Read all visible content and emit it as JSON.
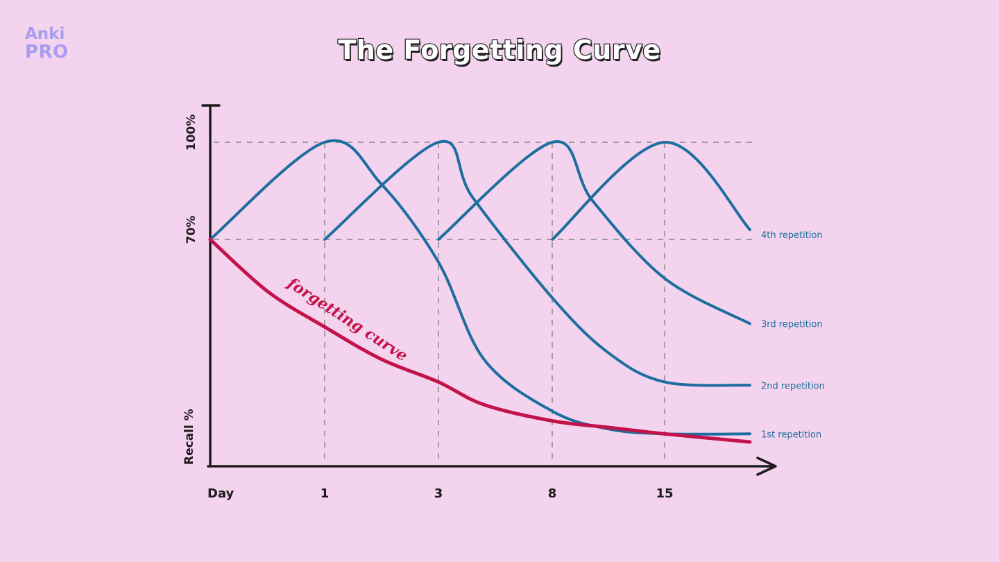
{
  "brand": {
    "line1": "Anki",
    "line2": "PRO",
    "color": "#a89cf0"
  },
  "background_color": "#f4d3ee",
  "chart_data": {
    "type": "line",
    "title": "The Forgetting Curve",
    "xlabel": "Day",
    "ylabel": "Recall %",
    "x_ticks": [
      "1",
      "3",
      "8",
      "15"
    ],
    "y_ticks": [
      "70%",
      "100%"
    ],
    "y_tick_values": [
      70,
      100
    ],
    "grid": "dashed at ticks",
    "colors": {
      "repetition": "#1d6e9f",
      "forgetting": "#c2134a"
    },
    "forgetting_curve": {
      "label": "forgetting curve",
      "points": [
        [
          0,
          70
        ],
        [
          0.5,
          54
        ],
        [
          1,
          43
        ],
        [
          2,
          33
        ],
        [
          3,
          26
        ],
        [
          5,
          19
        ],
        [
          8,
          14
        ],
        [
          11.5,
          12
        ],
        [
          15,
          10
        ],
        [
          18,
          7.5
        ]
      ]
    },
    "series": [
      {
        "name": "1st repetition",
        "points": [
          [
            0,
            70
          ],
          [
            1,
            100
          ],
          [
            2,
            87
          ],
          [
            3,
            63
          ],
          [
            5,
            33
          ],
          [
            8,
            17
          ],
          [
            11.5,
            11.5
          ],
          [
            15,
            10
          ],
          [
            18,
            10
          ]
        ]
      },
      {
        "name": "2nd repetition",
        "points": [
          [
            1,
            70
          ],
          [
            3,
            100
          ],
          [
            4.5,
            83
          ],
          [
            8,
            52
          ],
          [
            11.5,
            35
          ],
          [
            15,
            26
          ],
          [
            18,
            25
          ]
        ]
      },
      {
        "name": "3rd repetition",
        "points": [
          [
            3,
            70
          ],
          [
            8,
            100
          ],
          [
            10.5,
            82
          ],
          [
            15,
            58
          ],
          [
            18,
            44
          ]
        ]
      },
      {
        "name": "4th repetition",
        "points": [
          [
            8,
            70
          ],
          [
            15,
            100
          ],
          [
            18,
            73
          ]
        ]
      }
    ]
  }
}
